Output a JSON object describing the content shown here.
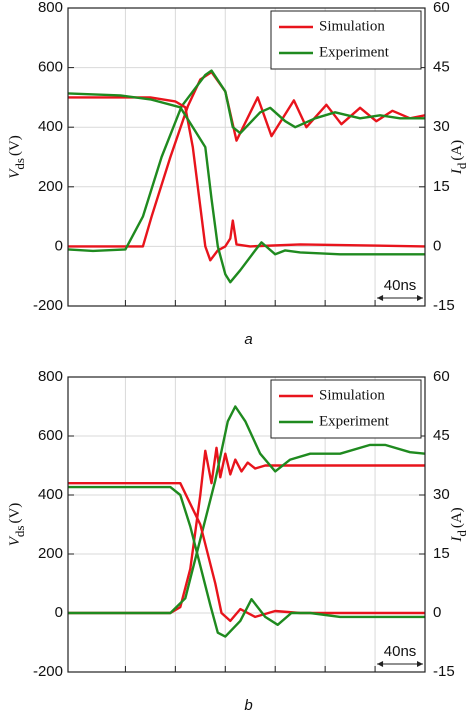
{
  "chart_data": [
    {
      "type": "line",
      "caption": "a",
      "ylabel": {
        "symbol": "V",
        "sub": "ds",
        "unit": "(V)"
      },
      "y2label": {
        "symbol": "I",
        "sub": "d",
        "unit": "(A)"
      },
      "xlim": [
        0,
        286
      ],
      "xticks": [
        46,
        86,
        126,
        166,
        206,
        246
      ],
      "ylim": [
        -200,
        800
      ],
      "yticks": [
        -200,
        0,
        200,
        400,
        600,
        800
      ],
      "y2lim": [
        -15,
        60
      ],
      "y2ticks": [
        -15,
        0,
        15,
        30,
        45,
        60
      ],
      "grid": true,
      "legend": "upper right",
      "scale_bar_label": "40ns",
      "series": [
        {
          "name": "Simulation",
          "color": "#e8141c",
          "x": [
            0,
            60,
            67,
            82,
            96,
            106,
            115,
            126,
            135,
            152,
            163,
            181,
            191,
            207,
            219,
            234,
            247,
            260,
            274,
            286
          ],
          "values": [
            0,
            0,
            100,
            300,
            470,
            560,
            585,
            520,
            355,
            500,
            370,
            490,
            400,
            475,
            410,
            465,
            420,
            455,
            430,
            440
          ]
        },
        {
          "name": "Experiment",
          "color": "#1f8a1f",
          "x": [
            0,
            20,
            46,
            60,
            75,
            91,
            110,
            115,
            126,
            132,
            138,
            154,
            162,
            174,
            182,
            198,
            214,
            234,
            250,
            266,
            286
          ],
          "values": [
            -10,
            -15,
            -10,
            100,
            300,
            470,
            575,
            590,
            520,
            400,
            380,
            450,
            465,
            420,
            400,
            430,
            450,
            430,
            440,
            430,
            430
          ]
        },
        {
          "color": "#e8141c",
          "axis": "y2",
          "x": [
            0,
            66,
            86,
            94,
            100,
            106,
            110,
            114,
            120,
            126,
            130,
            132,
            135,
            146,
            186,
            286
          ],
          "values": [
            37.5,
            37.5,
            36.5,
            35,
            25,
            10,
            0,
            -3.5,
            -1,
            0,
            2,
            6.5,
            0.5,
            0,
            0.5,
            0
          ]
        },
        {
          "color": "#1f8a1f",
          "axis": "y2",
          "x": [
            0,
            42,
            66,
            90,
            110,
            115,
            120,
            126,
            130,
            138,
            150,
            155,
            166,
            174,
            186,
            218,
            286
          ],
          "values": [
            38.5,
            38,
            37,
            35,
            25,
            12,
            0,
            -7,
            -9,
            -6,
            -1,
            1,
            -2,
            -1,
            -1.5,
            -2,
            -2
          ]
        }
      ]
    },
    {
      "type": "line",
      "caption": "b",
      "ylabel": {
        "symbol": "V",
        "sub": "ds",
        "unit": "(V)"
      },
      "y2label": {
        "symbol": "I",
        "sub": "d",
        "unit": "(A)"
      },
      "xlim": [
        0,
        286
      ],
      "xticks": [
        46,
        86,
        126,
        166,
        206,
        246
      ],
      "ylim": [
        -200,
        800
      ],
      "yticks": [
        -200,
        0,
        200,
        400,
        600,
        800
      ],
      "y2lim": [
        -15,
        60
      ],
      "y2ticks": [
        -15,
        0,
        15,
        30,
        45,
        60
      ],
      "grid": true,
      "legend": "upper right",
      "scale_bar_label": "40ns",
      "series": [
        {
          "name": "Simulation",
          "color": "#e8141c",
          "x": [
            0,
            82,
            90,
            98,
            106,
            110,
            115,
            119,
            122,
            126,
            130,
            134,
            139,
            144,
            150,
            158,
            286
          ],
          "values": [
            0,
            0,
            20,
            150,
            400,
            550,
            440,
            560,
            460,
            540,
            470,
            520,
            480,
            510,
            490,
            500,
            500
          ]
        },
        {
          "name": "Experiment",
          "color": "#1f8a1f",
          "x": [
            0,
            82,
            94,
            106,
            118,
            128,
            134,
            142,
            154,
            166,
            178,
            194,
            218,
            242,
            254,
            274,
            286
          ],
          "values": [
            0,
            0,
            50,
            250,
            450,
            650,
            700,
            650,
            540,
            480,
            520,
            540,
            540,
            570,
            570,
            545,
            540
          ]
        },
        {
          "color": "#e8141c",
          "axis": "y2",
          "x": [
            0,
            90,
            106,
            118,
            123,
            130,
            138,
            150,
            166,
            186,
            286
          ],
          "values": [
            33,
            33,
            22.5,
            7.5,
            0,
            -2,
            1,
            -1,
            0.5,
            0,
            0
          ]
        },
        {
          "color": "#1f8a1f",
          "axis": "y2",
          "x": [
            0,
            82,
            90,
            98,
            106,
            114,
            120,
            126,
            138,
            147,
            158,
            168,
            179,
            194,
            218,
            286
          ],
          "values": [
            32,
            32,
            30,
            22,
            12,
            2,
            -5,
            -6,
            -2,
            3.5,
            -1,
            -3,
            0,
            0,
            -1,
            -1
          ]
        }
      ]
    }
  ]
}
